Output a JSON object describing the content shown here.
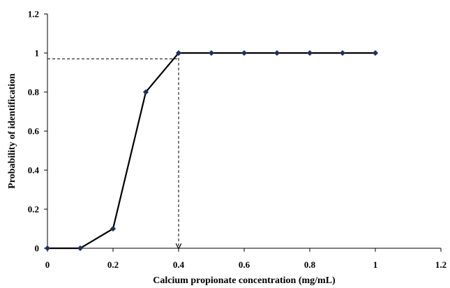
{
  "chart_data": {
    "type": "line",
    "title": "",
    "xlabel": "Calcium propionate concentration (mg/mL)",
    "ylabel": "Probability of identification",
    "xlim": [
      0,
      1.2
    ],
    "ylim": [
      0,
      1.2
    ],
    "xticks": [
      "0",
      "0.2",
      "0.4",
      "0.6",
      "0.8",
      "1",
      "1.2"
    ],
    "yticks": [
      "0",
      "0.2",
      "0.4",
      "0.6",
      "0.8",
      "1",
      "1.2"
    ],
    "grid": false,
    "legend": "none",
    "series": [
      {
        "x": [
          0,
          0.1,
          0.2,
          0.3,
          0.4,
          0.5,
          0.6,
          0.7,
          0.8,
          0.9,
          1.0
        ],
        "y": [
          0,
          0,
          0.1,
          0.8,
          1,
          1,
          1,
          1,
          1,
          1,
          1
        ],
        "color": "#000000",
        "marker_color": "#1f2f5a"
      }
    ],
    "annotations": [
      {
        "type": "dashed-guide",
        "x": 0.4,
        "y": 0.97,
        "arrow": "down"
      }
    ]
  }
}
